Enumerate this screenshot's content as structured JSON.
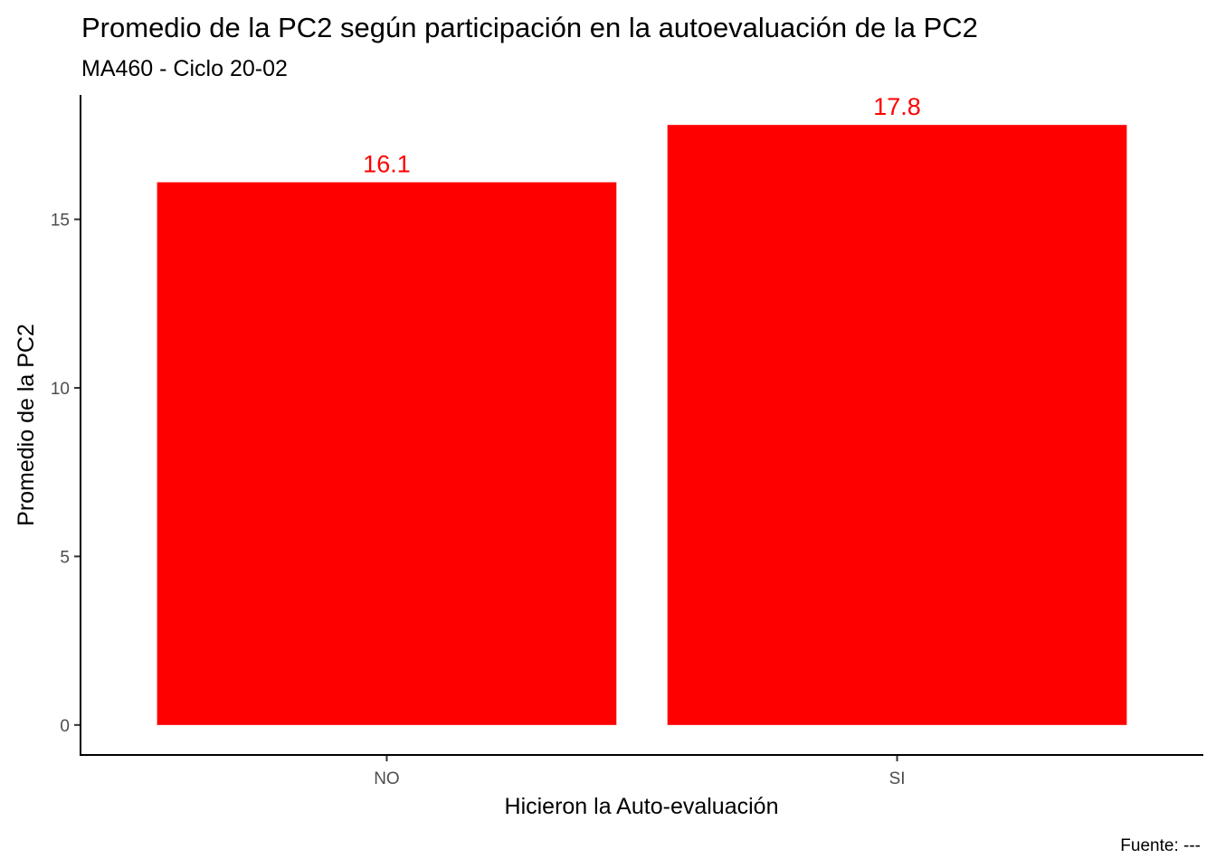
{
  "chart_data": {
    "type": "bar",
    "title": "Promedio de la PC2 según participación en la autoevaluación de la PC2",
    "subtitle": "MA460 - Ciclo 20-02",
    "xlabel": "Hicieron la Auto-evaluación",
    "ylabel": "Promedio de la PC2",
    "caption": "Fuente: ---",
    "categories": [
      "NO",
      "SI"
    ],
    "values": [
      16.1,
      17.8
    ],
    "data_labels": [
      "16.1",
      "17.8"
    ],
    "yticks": [
      0,
      5,
      10,
      15
    ],
    "ytick_labels": [
      "0",
      "5",
      "10",
      "15"
    ],
    "ylim": [
      -0.89,
      18.69
    ],
    "bar_color": "#ff0000",
    "label_color": "#ff0000",
    "grid": false,
    "legend": "none"
  }
}
